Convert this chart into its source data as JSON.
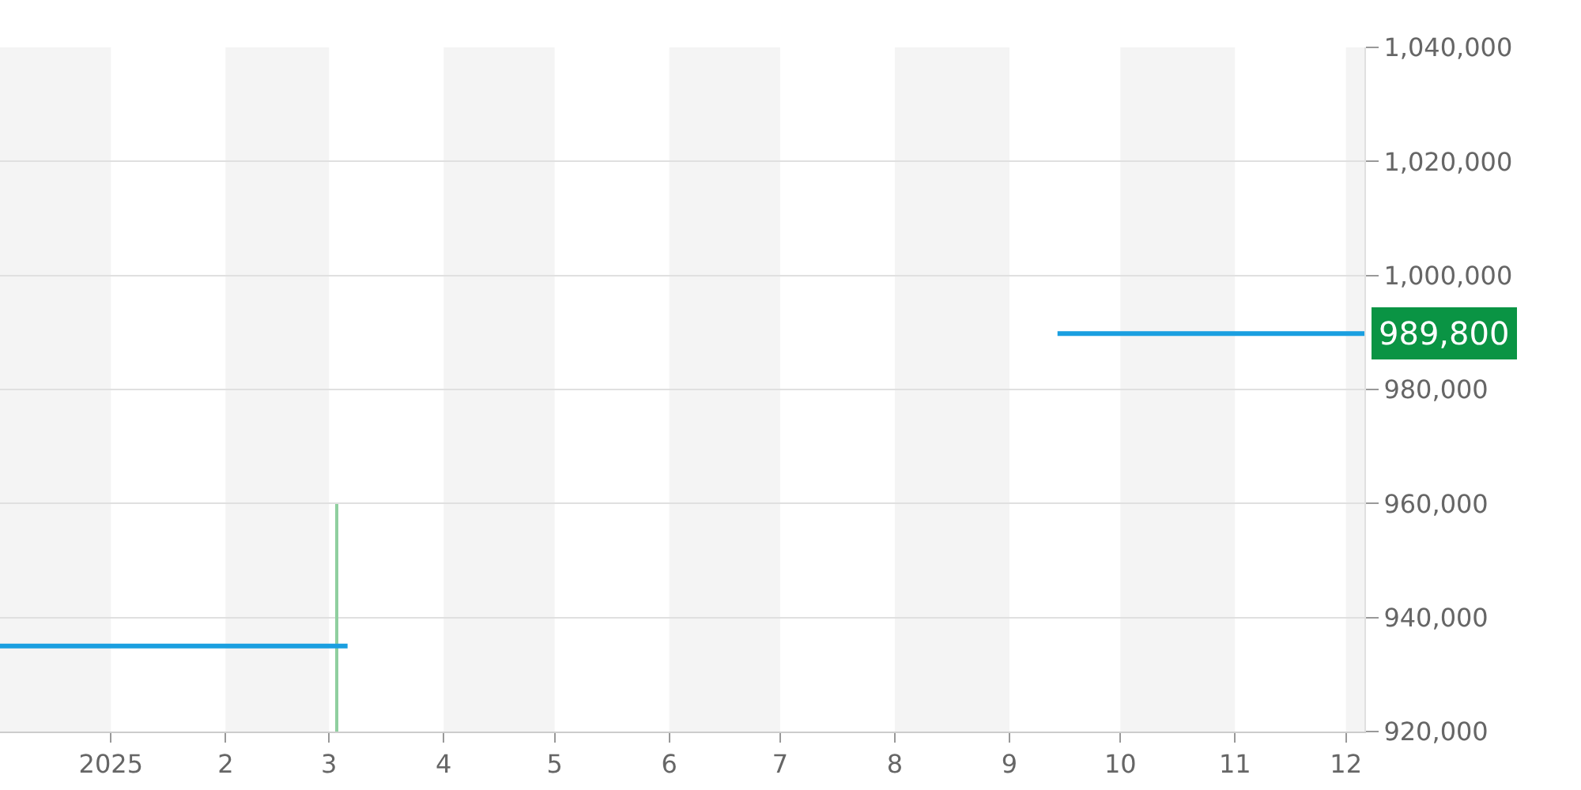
{
  "chart_data": {
    "type": "line",
    "xlim": [
      "2024-12-02",
      "2025-12-06"
    ],
    "xticks": [
      {
        "value": "2025-01-01",
        "label": "2025"
      },
      {
        "value": "2025-02-01",
        "label": "2"
      },
      {
        "value": "2025-03-01",
        "label": "3"
      },
      {
        "value": "2025-04-01",
        "label": "4"
      },
      {
        "value": "2025-05-01",
        "label": "5"
      },
      {
        "value": "2025-06-01",
        "label": "6"
      },
      {
        "value": "2025-07-01",
        "label": "7"
      },
      {
        "value": "2025-08-01",
        "label": "8"
      },
      {
        "value": "2025-09-01",
        "label": "9"
      },
      {
        "value": "2025-10-01",
        "label": "10"
      },
      {
        "value": "2025-11-01",
        "label": "11"
      },
      {
        "value": "2025-12-01",
        "label": "12"
      }
    ],
    "ylim": [
      920000,
      1040000
    ],
    "yticks": [
      {
        "value": 920000,
        "label": "920,000"
      },
      {
        "value": 940000,
        "label": "940,000"
      },
      {
        "value": 960000,
        "label": "960,000"
      },
      {
        "value": 980000,
        "label": "980,000"
      },
      {
        "value": 1000000,
        "label": "1,000,000"
      },
      {
        "value": 1020000,
        "label": "1,020,000"
      },
      {
        "value": 1040000,
        "label": "1,040,000"
      }
    ],
    "grid": "y",
    "marker": "none",
    "line_style": "solid",
    "series": [
      {
        "color": "#1a9fe0",
        "x": [
          "2024-12-02",
          "2025-03-06",
          "2025-06-01",
          "2025-09-14",
          "2025-12-06"
        ],
        "values": [
          935000,
          935000,
          null,
          989800,
          989800
        ]
      },
      {
        "type": "bar",
        "color": "#8fcf9f",
        "x": [
          "2025-03-03"
        ],
        "values": [
          960000
        ]
      }
    ],
    "bands": [
      {
        "axis": "x",
        "from": "2024-12-02",
        "to": "2025-01-01",
        "color": "#f4f4f4"
      },
      {
        "axis": "x",
        "from": "2025-02-01",
        "to": "2025-03-01",
        "color": "#f4f4f4"
      },
      {
        "axis": "x",
        "from": "2025-04-01",
        "to": "2025-05-01",
        "color": "#f4f4f4"
      },
      {
        "axis": "x",
        "from": "2025-06-01",
        "to": "2025-07-01",
        "color": "#f4f4f4"
      },
      {
        "axis": "x",
        "from": "2025-08-01",
        "to": "2025-09-01",
        "color": "#f4f4f4"
      },
      {
        "axis": "x",
        "from": "2025-10-01",
        "to": "2025-11-01",
        "color": "#f4f4f4"
      },
      {
        "axis": "x",
        "from": "2025-12-01",
        "to": "2025-12-06",
        "color": "#f4f4f4"
      }
    ],
    "annotations": [
      {
        "text": "989,800",
        "x": "2025-12-06",
        "y": 989800
      }
    ]
  }
}
